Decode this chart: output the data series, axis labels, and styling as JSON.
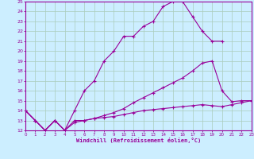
{
  "xlabel": "Windchill (Refroidissement éolien,°C)",
  "bg_color": "#cceeff",
  "line_color": "#990099",
  "grid_color": "#aaccbb",
  "xmin": 0,
  "xmax": 23,
  "ymin": 12,
  "ymax": 25,
  "line1_x": [
    0,
    1,
    2,
    3,
    4,
    5,
    6,
    7,
    8,
    9,
    10,
    11,
    12,
    13,
    14,
    15,
    16,
    17,
    18,
    19,
    20
  ],
  "line1_y": [
    14,
    13,
    12,
    13,
    12,
    14,
    16,
    17,
    19,
    20,
    21.5,
    21.5,
    22.5,
    23,
    24.5,
    25,
    25,
    23.5,
    22,
    21,
    21
  ],
  "line2_x": [
    0,
    1,
    2,
    3,
    4,
    5,
    6,
    7,
    8,
    9,
    10,
    11,
    12,
    13,
    14,
    15,
    16,
    17,
    18,
    19,
    20,
    21,
    22,
    23
  ],
  "line2_y": [
    14,
    13,
    12,
    13,
    12,
    13,
    13,
    13.2,
    13.5,
    13.8,
    14.2,
    14.8,
    15.3,
    15.8,
    16.3,
    16.8,
    17.3,
    18.0,
    18.8,
    19.0,
    16.0,
    14.9,
    15.0,
    15.0
  ],
  "line3_x": [
    0,
    1,
    2,
    3,
    4,
    5,
    6,
    7,
    8,
    9,
    10,
    11,
    12,
    13,
    14,
    15,
    16,
    17,
    18,
    19,
    20,
    21,
    22,
    23
  ],
  "line3_y": [
    14,
    13,
    12,
    13,
    12,
    12.8,
    13.0,
    13.2,
    13.3,
    13.4,
    13.6,
    13.8,
    14.0,
    14.1,
    14.2,
    14.3,
    14.4,
    14.5,
    14.6,
    14.5,
    14.4,
    14.6,
    14.8,
    15.0
  ],
  "xticks": [
    0,
    1,
    2,
    3,
    4,
    5,
    6,
    7,
    8,
    9,
    10,
    11,
    12,
    13,
    14,
    15,
    16,
    17,
    18,
    19,
    20,
    21,
    22,
    23
  ],
  "yticks": [
    12,
    13,
    14,
    15,
    16,
    17,
    18,
    19,
    20,
    21,
    22,
    23,
    24,
    25
  ]
}
